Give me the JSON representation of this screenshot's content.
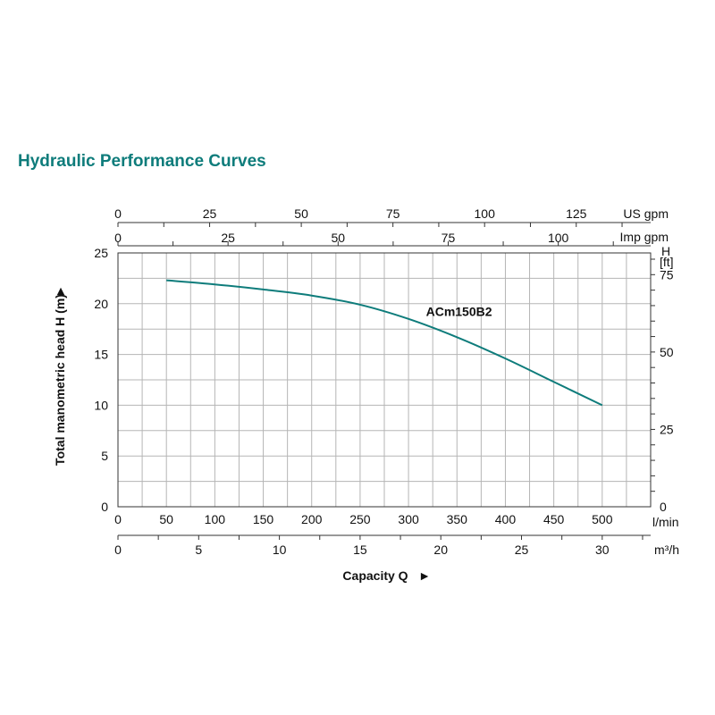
{
  "title": "Hydraulic Performance Curves",
  "chart_data": {
    "type": "line",
    "title": "Hydraulic Performance Curves",
    "xlabel": "Capacity Q",
    "xlabel_arrow": "►",
    "ylabel": "Total manometric head H (m)",
    "ylabel_arrow": "►",
    "x_unit": "l/min",
    "xlim": [
      0,
      550
    ],
    "ylim": [
      0,
      25
    ],
    "grid": true,
    "x_ticks": [
      0,
      50,
      100,
      150,
      200,
      250,
      300,
      350,
      400,
      450,
      500
    ],
    "y_ticks": [
      0,
      5,
      10,
      15,
      20,
      25
    ],
    "secondary_axes": {
      "us_gpm": {
        "label": "US gpm",
        "ticks": [
          0,
          25,
          50,
          75,
          100,
          125
        ]
      },
      "imp_gpm": {
        "label": "Imp gpm",
        "ticks": [
          0,
          25,
          50,
          75,
          100
        ]
      },
      "m3h": {
        "label": "m³/h",
        "ticks": [
          0,
          5,
          10,
          15,
          20,
          25,
          30
        ]
      },
      "head_ft": {
        "label_line1": "H",
        "label_line2": "[ft]",
        "ticks": [
          0,
          25,
          50,
          75
        ]
      }
    },
    "series": [
      {
        "name": "ACm150B2",
        "color": "#0e7c7b",
        "x": [
          50,
          100,
          150,
          200,
          250,
          300,
          350,
          400,
          450,
          500
        ],
        "y": [
          22.3,
          21.9,
          21.4,
          20.8,
          19.9,
          18.5,
          16.7,
          14.6,
          12.3,
          10.0
        ]
      }
    ]
  }
}
